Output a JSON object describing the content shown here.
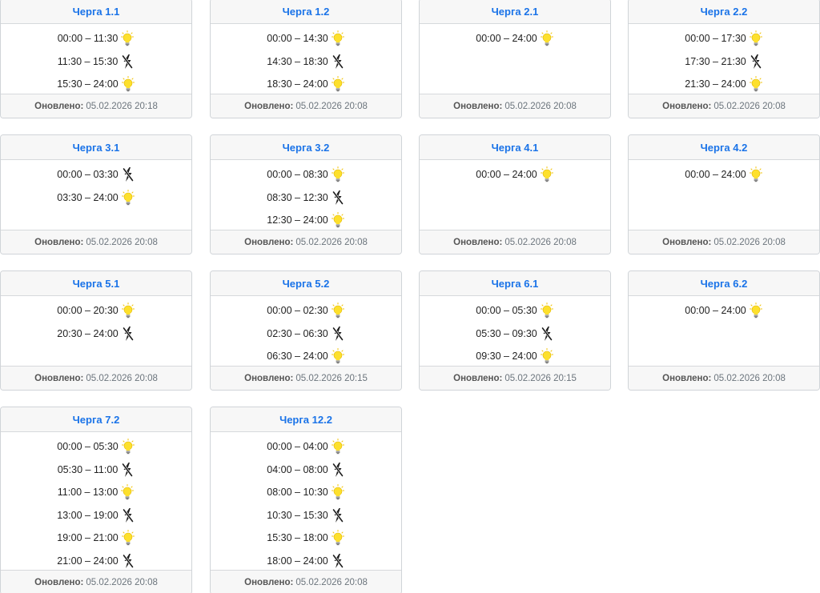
{
  "footer_label": "Оновлено:",
  "colors": {
    "title": "#1a73e8",
    "bulb_on": "#fde02c",
    "power_off": "#1e1e1e"
  },
  "queues": [
    {
      "title": "Черга 1.1",
      "updated": "05.02.2026 20:18",
      "slots": [
        {
          "time": "00:00 – 11:30",
          "status": "on",
          "icon": "lightbulb-icon"
        },
        {
          "time": "11:30 – 15:30",
          "status": "off",
          "icon": "power-off-icon"
        },
        {
          "time": "15:30 – 24:00",
          "status": "on",
          "icon": "lightbulb-icon"
        }
      ]
    },
    {
      "title": "Черга 1.2",
      "updated": "05.02.2026 20:08",
      "slots": [
        {
          "time": "00:00 – 14:30",
          "status": "on",
          "icon": "lightbulb-icon"
        },
        {
          "time": "14:30 – 18:30",
          "status": "off",
          "icon": "power-off-icon"
        },
        {
          "time": "18:30 – 24:00",
          "status": "on",
          "icon": "lightbulb-icon"
        }
      ]
    },
    {
      "title": "Черга 2.1",
      "updated": "05.02.2026 20:08",
      "slots": [
        {
          "time": "00:00 – 24:00",
          "status": "on",
          "icon": "lightbulb-icon"
        }
      ]
    },
    {
      "title": "Черга 2.2",
      "updated": "05.02.2026 20:08",
      "slots": [
        {
          "time": "00:00 – 17:30",
          "status": "on",
          "icon": "lightbulb-icon"
        },
        {
          "time": "17:30 – 21:30",
          "status": "off",
          "icon": "power-off-icon"
        },
        {
          "time": "21:30 – 24:00",
          "status": "on",
          "icon": "lightbulb-icon"
        }
      ]
    },
    {
      "title": "Черга 3.1",
      "updated": "05.02.2026 20:08",
      "slots": [
        {
          "time": "00:00 – 03:30",
          "status": "off",
          "icon": "power-off-icon"
        },
        {
          "time": "03:30 – 24:00",
          "status": "on",
          "icon": "lightbulb-icon"
        }
      ]
    },
    {
      "title": "Черга 3.2",
      "updated": "05.02.2026 20:08",
      "slots": [
        {
          "time": "00:00 – 08:30",
          "status": "on",
          "icon": "lightbulb-icon"
        },
        {
          "time": "08:30 – 12:30",
          "status": "off",
          "icon": "power-off-icon"
        },
        {
          "time": "12:30 – 24:00",
          "status": "on",
          "icon": "lightbulb-icon"
        }
      ]
    },
    {
      "title": "Черга 4.1",
      "updated": "05.02.2026 20:08",
      "slots": [
        {
          "time": "00:00 – 24:00",
          "status": "on",
          "icon": "lightbulb-icon"
        }
      ]
    },
    {
      "title": "Черга 4.2",
      "updated": "05.02.2026 20:08",
      "slots": [
        {
          "time": "00:00 – 24:00",
          "status": "on",
          "icon": "lightbulb-icon"
        }
      ]
    },
    {
      "title": "Черга 5.1",
      "updated": "05.02.2026 20:08",
      "slots": [
        {
          "time": "00:00 – 20:30",
          "status": "on",
          "icon": "lightbulb-icon"
        },
        {
          "time": "20:30 – 24:00",
          "status": "off",
          "icon": "power-off-icon"
        }
      ]
    },
    {
      "title": "Черга 5.2",
      "updated": "05.02.2026 20:15",
      "slots": [
        {
          "time": "00:00 – 02:30",
          "status": "on",
          "icon": "lightbulb-icon"
        },
        {
          "time": "02:30 – 06:30",
          "status": "off",
          "icon": "power-off-icon"
        },
        {
          "time": "06:30 – 24:00",
          "status": "on",
          "icon": "lightbulb-icon"
        }
      ]
    },
    {
      "title": "Черга 6.1",
      "updated": "05.02.2026 20:15",
      "slots": [
        {
          "time": "00:00 – 05:30",
          "status": "on",
          "icon": "lightbulb-icon"
        },
        {
          "time": "05:30 – 09:30",
          "status": "off",
          "icon": "power-off-icon"
        },
        {
          "time": "09:30 – 24:00",
          "status": "on",
          "icon": "lightbulb-icon"
        }
      ]
    },
    {
      "title": "Черга 6.2",
      "updated": "05.02.2026 20:08",
      "slots": [
        {
          "time": "00:00 – 24:00",
          "status": "on",
          "icon": "lightbulb-icon"
        }
      ]
    },
    {
      "title": "Черга 7.2",
      "updated": "05.02.2026 20:08",
      "slots": [
        {
          "time": "00:00 – 05:30",
          "status": "on",
          "icon": "lightbulb-icon"
        },
        {
          "time": "05:30 – 11:00",
          "status": "off",
          "icon": "power-off-icon"
        },
        {
          "time": "11:00 – 13:00",
          "status": "on",
          "icon": "lightbulb-icon"
        },
        {
          "time": "13:00 – 19:00",
          "status": "off",
          "icon": "power-off-icon"
        },
        {
          "time": "19:00 – 21:00",
          "status": "on",
          "icon": "lightbulb-icon"
        },
        {
          "time": "21:00 – 24:00",
          "status": "off",
          "icon": "power-off-icon"
        }
      ]
    },
    {
      "title": "Черга 12.2",
      "updated": "05.02.2026 20:08",
      "slots": [
        {
          "time": "00:00 – 04:00",
          "status": "on",
          "icon": "lightbulb-icon"
        },
        {
          "time": "04:00 – 08:00",
          "status": "off",
          "icon": "power-off-icon"
        },
        {
          "time": "08:00 – 10:30",
          "status": "on",
          "icon": "lightbulb-icon"
        },
        {
          "time": "10:30 – 15:30",
          "status": "off",
          "icon": "power-off-icon"
        },
        {
          "time": "15:30 – 18:00",
          "status": "on",
          "icon": "lightbulb-icon"
        },
        {
          "time": "18:00 – 24:00",
          "status": "off",
          "icon": "power-off-icon"
        }
      ]
    }
  ]
}
